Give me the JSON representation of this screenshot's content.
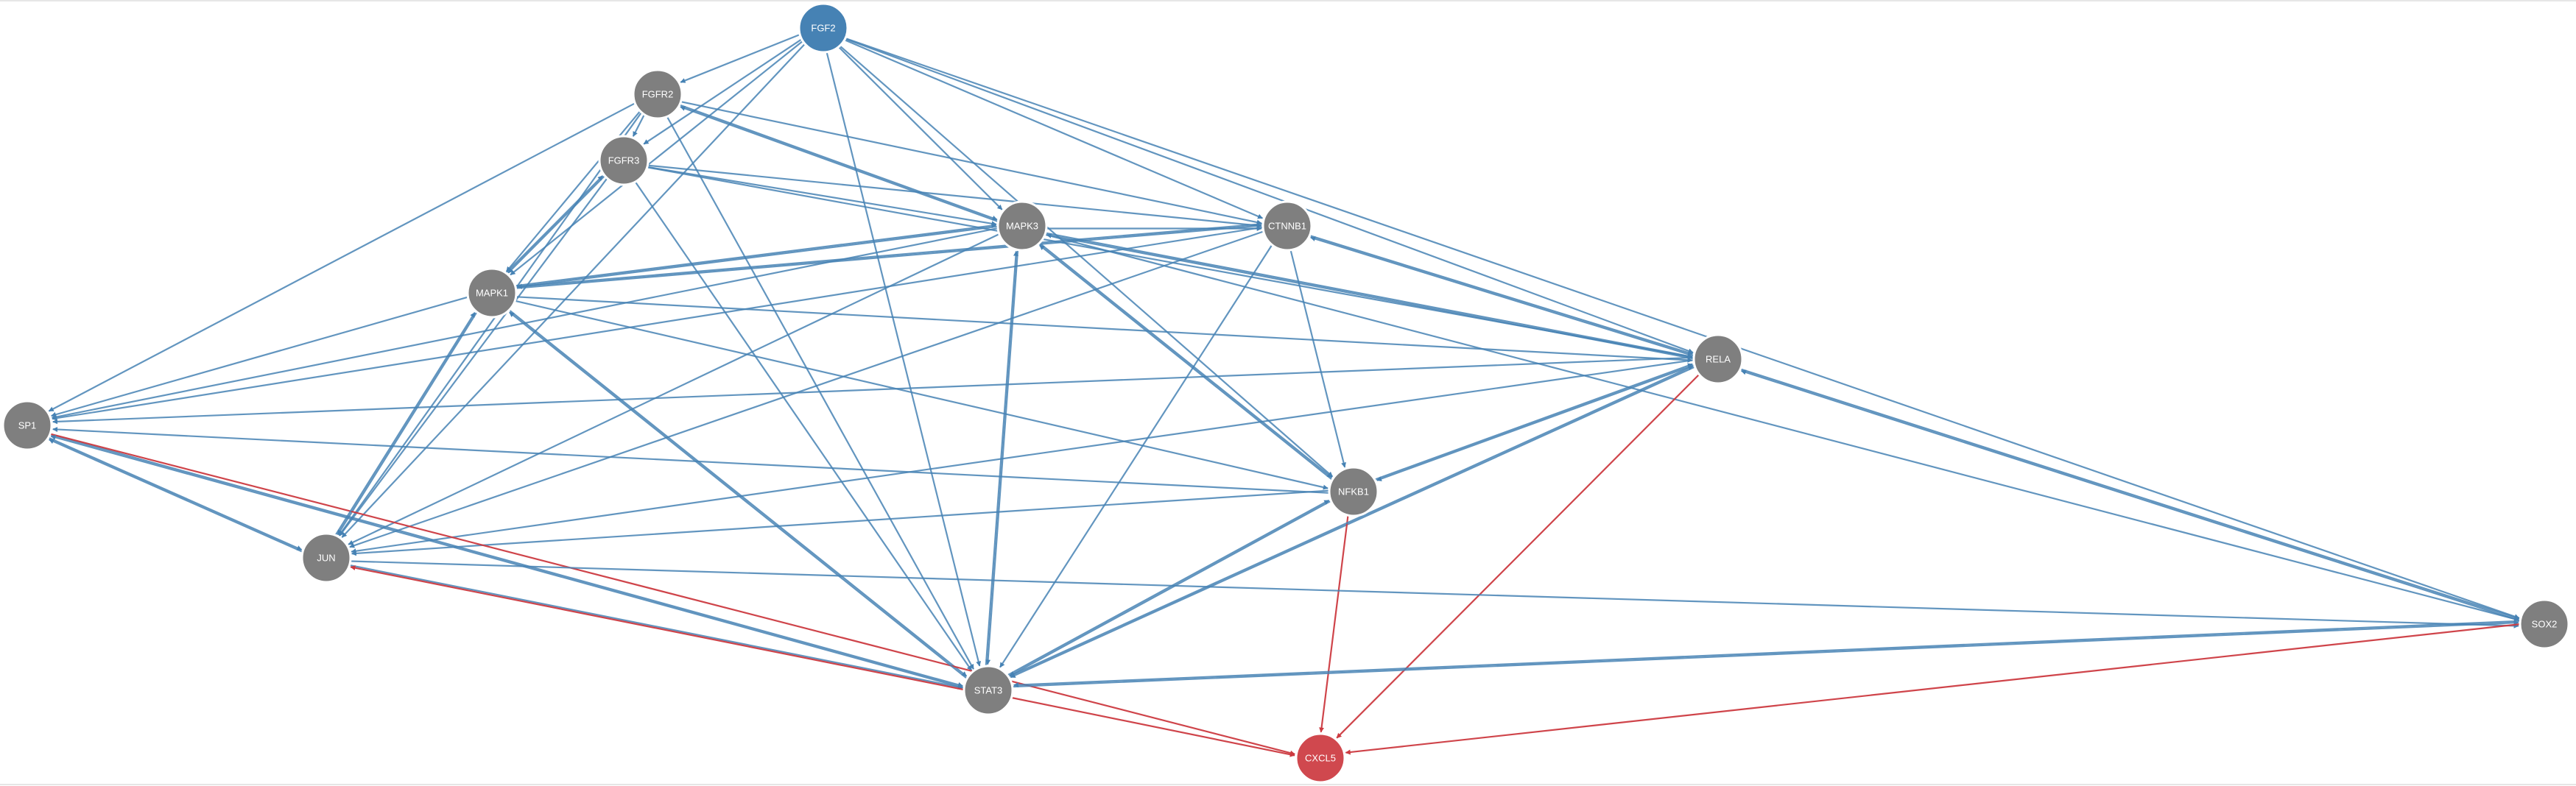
{
  "colors": {
    "node_default": "#7f7f7f",
    "node_source": "#4682b4",
    "node_target": "#d0484e",
    "edge_blue": "#4682b4",
    "edge_red": "#cc3a40",
    "label": "#ffffff"
  },
  "nodes": [
    {
      "id": "FGF2",
      "label": "FGF2",
      "role": "source"
    },
    {
      "id": "FGFR2",
      "label": "FGFR2",
      "role": "default"
    },
    {
      "id": "FGFR3",
      "label": "FGFR3",
      "role": "default"
    },
    {
      "id": "MAPK3",
      "label": "MAPK3",
      "role": "default"
    },
    {
      "id": "CTNNB1",
      "label": "CTNNB1",
      "role": "default"
    },
    {
      "id": "MAPK1",
      "label": "MAPK1",
      "role": "default"
    },
    {
      "id": "RELA",
      "label": "RELA",
      "role": "default"
    },
    {
      "id": "SP1",
      "label": "SP1",
      "role": "default"
    },
    {
      "id": "NFKB1",
      "label": "NFKB1",
      "role": "default"
    },
    {
      "id": "JUN",
      "label": "JUN",
      "role": "default"
    },
    {
      "id": "SOX2",
      "label": "SOX2",
      "role": "default"
    },
    {
      "id": "STAT3",
      "label": "STAT3",
      "role": "default"
    },
    {
      "id": "CXCL5",
      "label": "CXCL5",
      "role": "target"
    }
  ],
  "edges": [
    {
      "source": "FGF2",
      "target": "FGFR2",
      "color": "blue"
    },
    {
      "source": "FGF2",
      "target": "FGFR3",
      "color": "blue"
    },
    {
      "source": "FGF2",
      "target": "MAPK3",
      "color": "blue"
    },
    {
      "source": "FGF2",
      "target": "MAPK1",
      "color": "blue"
    },
    {
      "source": "FGF2",
      "target": "CTNNB1",
      "color": "blue"
    },
    {
      "source": "FGF2",
      "target": "RELA",
      "color": "blue"
    },
    {
      "source": "FGF2",
      "target": "SOX2",
      "color": "blue"
    },
    {
      "source": "FGF2",
      "target": "STAT3",
      "color": "blue"
    },
    {
      "source": "FGF2",
      "target": "JUN",
      "color": "blue"
    },
    {
      "source": "FGF2",
      "target": "NFKB1",
      "color": "blue"
    },
    {
      "source": "FGFR2",
      "target": "MAPK1",
      "color": "blue"
    },
    {
      "source": "FGFR2",
      "target": "MAPK3",
      "color": "blue"
    },
    {
      "source": "FGFR2",
      "target": "CTNNB1",
      "color": "blue"
    },
    {
      "source": "FGFR2",
      "target": "SP1",
      "color": "blue"
    },
    {
      "source": "FGFR2",
      "target": "JUN",
      "color": "blue"
    },
    {
      "source": "FGFR2",
      "target": "STAT3",
      "color": "blue"
    },
    {
      "source": "FGFR2",
      "target": "FGFR3",
      "color": "blue"
    },
    {
      "source": "FGFR3",
      "target": "MAPK1",
      "color": "blue"
    },
    {
      "source": "FGFR3",
      "target": "MAPK3",
      "color": "blue"
    },
    {
      "source": "FGFR3",
      "target": "CTNNB1",
      "color": "blue"
    },
    {
      "source": "FGFR3",
      "target": "JUN",
      "color": "blue"
    },
    {
      "source": "FGFR3",
      "target": "STAT3",
      "color": "blue"
    },
    {
      "source": "FGFR3",
      "target": "RELA",
      "color": "blue"
    },
    {
      "source": "MAPK3",
      "target": "FGFR2",
      "color": "blue"
    },
    {
      "source": "MAPK3",
      "target": "MAPK1",
      "color": "blue"
    },
    {
      "source": "MAPK3",
      "target": "SP1",
      "color": "blue"
    },
    {
      "source": "MAPK3",
      "target": "JUN",
      "color": "blue"
    },
    {
      "source": "MAPK3",
      "target": "STAT3",
      "color": "blue"
    },
    {
      "source": "MAPK3",
      "target": "NFKB1",
      "color": "blue"
    },
    {
      "source": "MAPK3",
      "target": "RELA",
      "color": "blue"
    },
    {
      "source": "MAPK3",
      "target": "SOX2",
      "color": "blue"
    },
    {
      "source": "MAPK3",
      "target": "CTNNB1",
      "color": "blue"
    },
    {
      "source": "MAPK1",
      "target": "FGFR3",
      "color": "blue"
    },
    {
      "source": "MAPK1",
      "target": "MAPK3",
      "color": "blue"
    },
    {
      "source": "MAPK1",
      "target": "SP1",
      "color": "blue"
    },
    {
      "source": "MAPK1",
      "target": "JUN",
      "color": "blue"
    },
    {
      "source": "MAPK1",
      "target": "STAT3",
      "color": "blue"
    },
    {
      "source": "MAPK1",
      "target": "NFKB1",
      "color": "blue"
    },
    {
      "source": "MAPK1",
      "target": "RELA",
      "color": "blue"
    },
    {
      "source": "MAPK1",
      "target": "CTNNB1",
      "color": "blue"
    },
    {
      "source": "CTNNB1",
      "target": "MAPK1",
      "color": "blue"
    },
    {
      "source": "CTNNB1",
      "target": "SP1",
      "color": "blue"
    },
    {
      "source": "CTNNB1",
      "target": "RELA",
      "color": "blue"
    },
    {
      "source": "CTNNB1",
      "target": "STAT3",
      "color": "blue"
    },
    {
      "source": "CTNNB1",
      "target": "NFKB1",
      "color": "blue"
    },
    {
      "source": "CTNNB1",
      "target": "JUN",
      "color": "blue"
    },
    {
      "source": "RELA",
      "target": "CTNNB1",
      "color": "blue"
    },
    {
      "source": "RELA",
      "target": "MAPK3",
      "color": "blue"
    },
    {
      "source": "RELA",
      "target": "SP1",
      "color": "blue"
    },
    {
      "source": "RELA",
      "target": "NFKB1",
      "color": "blue"
    },
    {
      "source": "RELA",
      "target": "STAT3",
      "color": "blue"
    },
    {
      "source": "RELA",
      "target": "JUN",
      "color": "blue"
    },
    {
      "source": "RELA",
      "target": "SOX2",
      "color": "blue"
    },
    {
      "source": "RELA",
      "target": "CXCL5",
      "color": "red"
    },
    {
      "source": "NFKB1",
      "target": "RELA",
      "color": "blue"
    },
    {
      "source": "NFKB1",
      "target": "MAPK3",
      "color": "blue"
    },
    {
      "source": "NFKB1",
      "target": "STAT3",
      "color": "blue"
    },
    {
      "source": "NFKB1",
      "target": "JUN",
      "color": "blue"
    },
    {
      "source": "NFKB1",
      "target": "SP1",
      "color": "blue"
    },
    {
      "source": "NFKB1",
      "target": "CXCL5",
      "color": "red"
    },
    {
      "source": "SP1",
      "target": "JUN",
      "color": "blue"
    },
    {
      "source": "SP1",
      "target": "STAT3",
      "color": "blue"
    },
    {
      "source": "SP1",
      "target": "CXCL5",
      "color": "red"
    },
    {
      "source": "JUN",
      "target": "SP1",
      "color": "blue"
    },
    {
      "source": "JUN",
      "target": "STAT3",
      "color": "blue"
    },
    {
      "source": "JUN",
      "target": "MAPK1",
      "color": "blue"
    },
    {
      "source": "JUN",
      "target": "SOX2",
      "color": "blue"
    },
    {
      "source": "STAT3",
      "target": "JUN",
      "color": "red"
    },
    {
      "source": "STAT3",
      "target": "SP1",
      "color": "blue"
    },
    {
      "source": "STAT3",
      "target": "MAPK1",
      "color": "blue"
    },
    {
      "source": "STAT3",
      "target": "MAPK3",
      "color": "blue"
    },
    {
      "source": "STAT3",
      "target": "NFKB1",
      "color": "blue"
    },
    {
      "source": "STAT3",
      "target": "RELA",
      "color": "blue"
    },
    {
      "source": "STAT3",
      "target": "SOX2",
      "color": "blue"
    },
    {
      "source": "STAT3",
      "target": "CXCL5",
      "color": "red"
    },
    {
      "source": "SOX2",
      "target": "STAT3",
      "color": "blue"
    },
    {
      "source": "SOX2",
      "target": "RELA",
      "color": "blue"
    },
    {
      "source": "SOX2",
      "target": "CXCL5",
      "color": "red"
    }
  ]
}
